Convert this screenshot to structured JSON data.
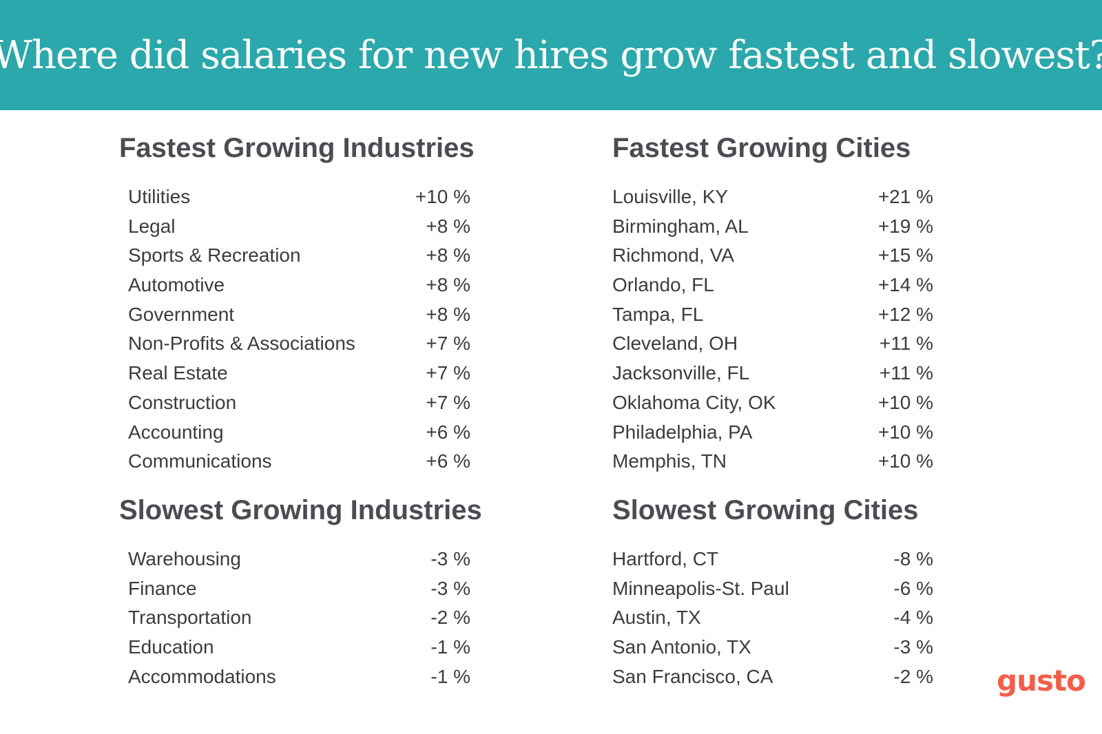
{
  "title": "Where did salaries for new hires grow fastest and slowest?",
  "colors": {
    "banner": "#2ba8ab",
    "heading_text": "#4a4c52",
    "body_text": "#3a3c41",
    "logo": "#f45d48"
  },
  "fastest_industries": {
    "heading": "Fastest Growing Industries",
    "rows": [
      {
        "name": "Utilities",
        "value": "+10 %"
      },
      {
        "name": "Legal",
        "value": "+8 %"
      },
      {
        "name": "Sports & Recreation",
        "value": "+8 %"
      },
      {
        "name": "Automotive",
        "value": "+8 %"
      },
      {
        "name": "Government",
        "value": "+8 %"
      },
      {
        "name": "Non-Profits & Associations",
        "value": "+7 %"
      },
      {
        "name": "Real Estate",
        "value": "+7 %"
      },
      {
        "name": "Construction",
        "value": "+7 %"
      },
      {
        "name": "Accounting",
        "value": "+6 %"
      },
      {
        "name": "Communications",
        "value": "+6 %"
      }
    ]
  },
  "fastest_cities": {
    "heading": "Fastest Growing Cities",
    "rows": [
      {
        "name": "Louisville, KY",
        "value": "+21 %"
      },
      {
        "name": "Birmingham, AL",
        "value": "+19 %"
      },
      {
        "name": "Richmond, VA",
        "value": "+15 %"
      },
      {
        "name": "Orlando, FL",
        "value": "+14 %"
      },
      {
        "name": "Tampa, FL",
        "value": "+12 %"
      },
      {
        "name": "Cleveland, OH",
        "value": "+11 %"
      },
      {
        "name": "Jacksonville, FL",
        "value": "+11 %"
      },
      {
        "name": "Oklahoma City, OK",
        "value": "+10 %"
      },
      {
        "name": "Philadelphia, PA",
        "value": "+10 %"
      },
      {
        "name": "Memphis, TN",
        "value": "+10 %"
      }
    ]
  },
  "slowest_industries": {
    "heading": "Slowest Growing Industries",
    "rows": [
      {
        "name": "Warehousing",
        "value": "-3 %"
      },
      {
        "name": "Finance",
        "value": "-3 %"
      },
      {
        "name": "Transportation",
        "value": "-2 %"
      },
      {
        "name": "Education",
        "value": "-1 %"
      },
      {
        "name": "Accommodations",
        "value": "-1 %"
      }
    ]
  },
  "slowest_cities": {
    "heading": "Slowest Growing Cities",
    "rows": [
      {
        "name": "Hartford, CT",
        "value": "-8 %"
      },
      {
        "name": "Minneapolis-St. Paul",
        "value": "-6 %"
      },
      {
        "name": "Austin, TX",
        "value": "-4 %"
      },
      {
        "name": "San Antonio, TX",
        "value": "-3 %"
      },
      {
        "name": "San Francisco, CA",
        "value": "-2 %"
      }
    ]
  },
  "logo": {
    "text": "gusto"
  }
}
